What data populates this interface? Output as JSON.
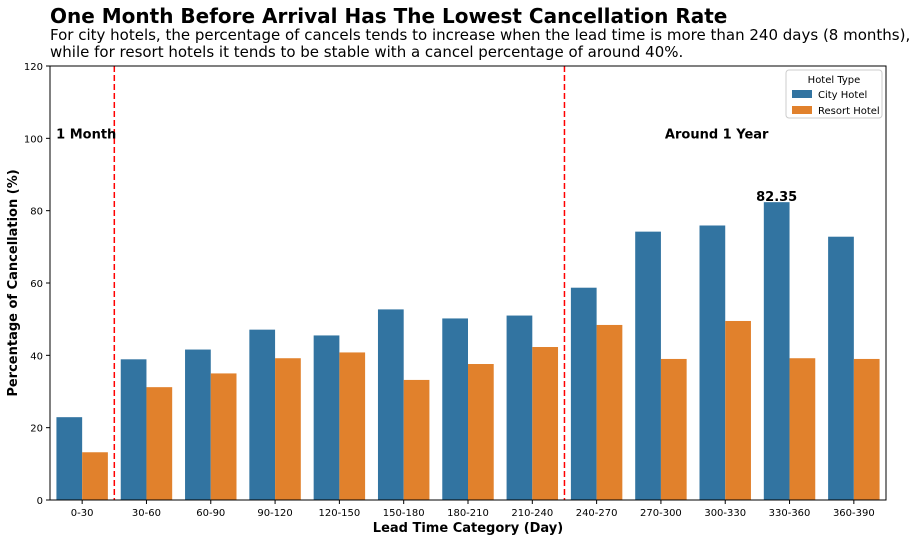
{
  "chart_data": {
    "type": "bar",
    "title": "One Month Before Arrival Has The Lowest Cancellation Rate",
    "subtitle": [
      "For city hotels, the percentage of cancels tends to increase when the lead time is more than 240 days (8 months),",
      "while for resort hotels it tends to be stable with a cancel percentage of around 40%."
    ],
    "xlabel": "Lead Time Category (Day)",
    "ylabel": "Percentage of Cancellation (%)",
    "ylim": [
      0,
      120
    ],
    "yticks": [
      0,
      20,
      40,
      60,
      80,
      100,
      120
    ],
    "categories": [
      "0-30",
      "30-60",
      "60-90",
      "90-120",
      "120-150",
      "150-180",
      "180-210",
      "210-240",
      "240-270",
      "270-300",
      "300-330",
      "330-360",
      "360-390"
    ],
    "series": [
      {
        "name": "City Hotel",
        "color": "#3274a1",
        "values": [
          22.9,
          38.9,
          41.6,
          47.1,
          45.5,
          52.7,
          50.2,
          51.0,
          58.7,
          74.2,
          75.9,
          82.35,
          72.8
        ]
      },
      {
        "name": "Resort Hotel",
        "color": "#e1812c",
        "values": [
          13.2,
          31.2,
          35.0,
          39.2,
          40.8,
          33.2,
          37.6,
          42.3,
          48.4,
          39.0,
          49.5,
          39.2,
          39.0
        ]
      }
    ],
    "legend": {
      "title": "Hotel Type",
      "placement": "top-right"
    },
    "grid": false,
    "annotations": {
      "vlines": [
        {
          "x_between": [
            "0-30",
            "30-60"
          ],
          "color": "#ff0000",
          "style": "dashed"
        },
        {
          "x_between": [
            "210-240",
            "240-270"
          ],
          "color": "#ff0000",
          "style": "dashed"
        }
      ],
      "labels": [
        {
          "text": "1 Month",
          "near_category": "0-30",
          "y": 100
        },
        {
          "text": "Around 1 Year",
          "near_category": "270-300",
          "y": 100
        }
      ],
      "value_label": {
        "text": "82.35",
        "category": "330-360",
        "series": "City Hotel"
      }
    }
  }
}
